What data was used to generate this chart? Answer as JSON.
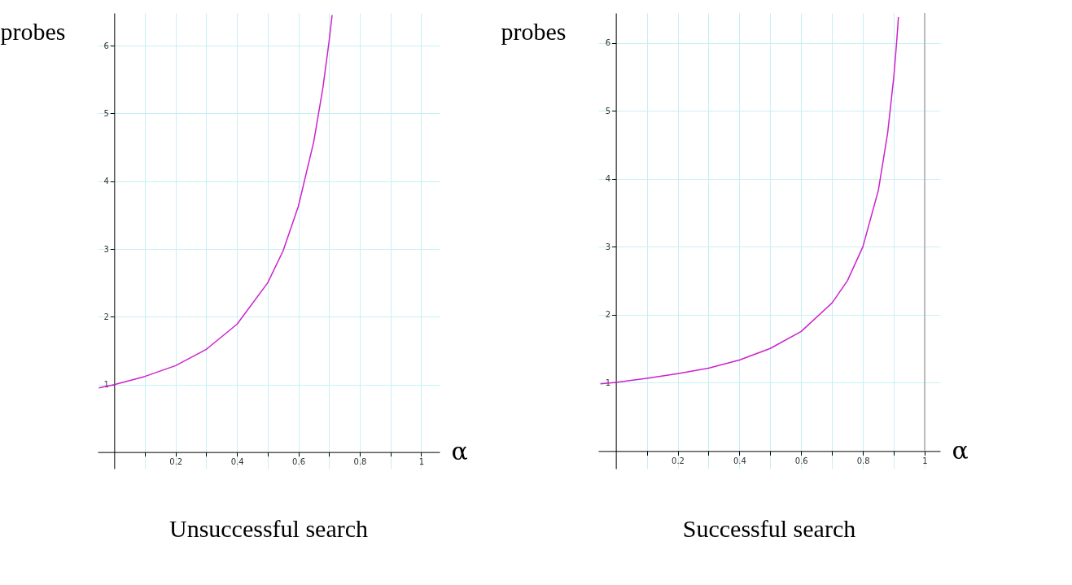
{
  "chart_data": [
    {
      "type": "line",
      "title": "Unsuccessful search",
      "xlabel": "α",
      "ylabel": "probes",
      "x": [
        -0.05,
        0,
        0.1,
        0.2,
        0.3,
        0.4,
        0.5,
        0.55,
        0.6,
        0.65,
        0.68,
        0.7,
        0.71
      ],
      "series": [
        {
          "color": "#cc22cc",
          "values": [
            0.95,
            1,
            1.12,
            1.28,
            1.52,
            1.89,
            2.5,
            2.97,
            3.63,
            4.58,
            5.38,
            6.06,
            6.45
          ]
        }
      ],
      "xlim": [
        -0.054,
        1.06
      ],
      "ylim": [
        -0.24,
        6.48
      ],
      "xticks": [
        {
          "value": 0.1,
          "label": null
        },
        0.2,
        {
          "value": 0.3,
          "label": null
        },
        0.4,
        {
          "value": 0.5,
          "label": null
        },
        0.6,
        {
          "value": 0.7,
          "label": null
        },
        0.8,
        {
          "value": 0.9,
          "label": null
        },
        1
      ],
      "yticks": [
        1,
        2,
        3,
        4,
        5,
        6
      ],
      "grid": true
    },
    {
      "type": "line",
      "title": "Successful search",
      "xlabel": "α",
      "ylabel": "probes",
      "x": [
        -0.05,
        0,
        0.1,
        0.2,
        0.3,
        0.4,
        0.5,
        0.6,
        0.7,
        0.75,
        0.8,
        0.85,
        0.88,
        0.9,
        0.91,
        0.915
      ],
      "series": [
        {
          "color": "#cc22cc",
          "values": [
            0.98,
            1,
            1.06,
            1.13,
            1.21,
            1.33,
            1.5,
            1.75,
            2.17,
            2.5,
            3,
            3.83,
            4.67,
            5.5,
            6.06,
            6.38
          ]
        }
      ],
      "xlim": [
        -0.057,
        1.05
      ],
      "ylim": [
        -0.27,
        6.44
      ],
      "xticks": [
        {
          "value": 0.1,
          "label": null
        },
        0.2,
        {
          "value": 0.3,
          "label": null
        },
        0.4,
        {
          "value": 0.5,
          "label": null
        },
        0.6,
        {
          "value": 0.7,
          "label": null
        },
        0.8,
        {
          "value": 0.9,
          "label": null
        },
        1
      ],
      "yticks": [
        1,
        2,
        3,
        4,
        5,
        6
      ],
      "grid": true,
      "ref_lines": [
        {
          "axis": "x",
          "value": 1,
          "color": "#bbbbbb"
        }
      ]
    }
  ]
}
